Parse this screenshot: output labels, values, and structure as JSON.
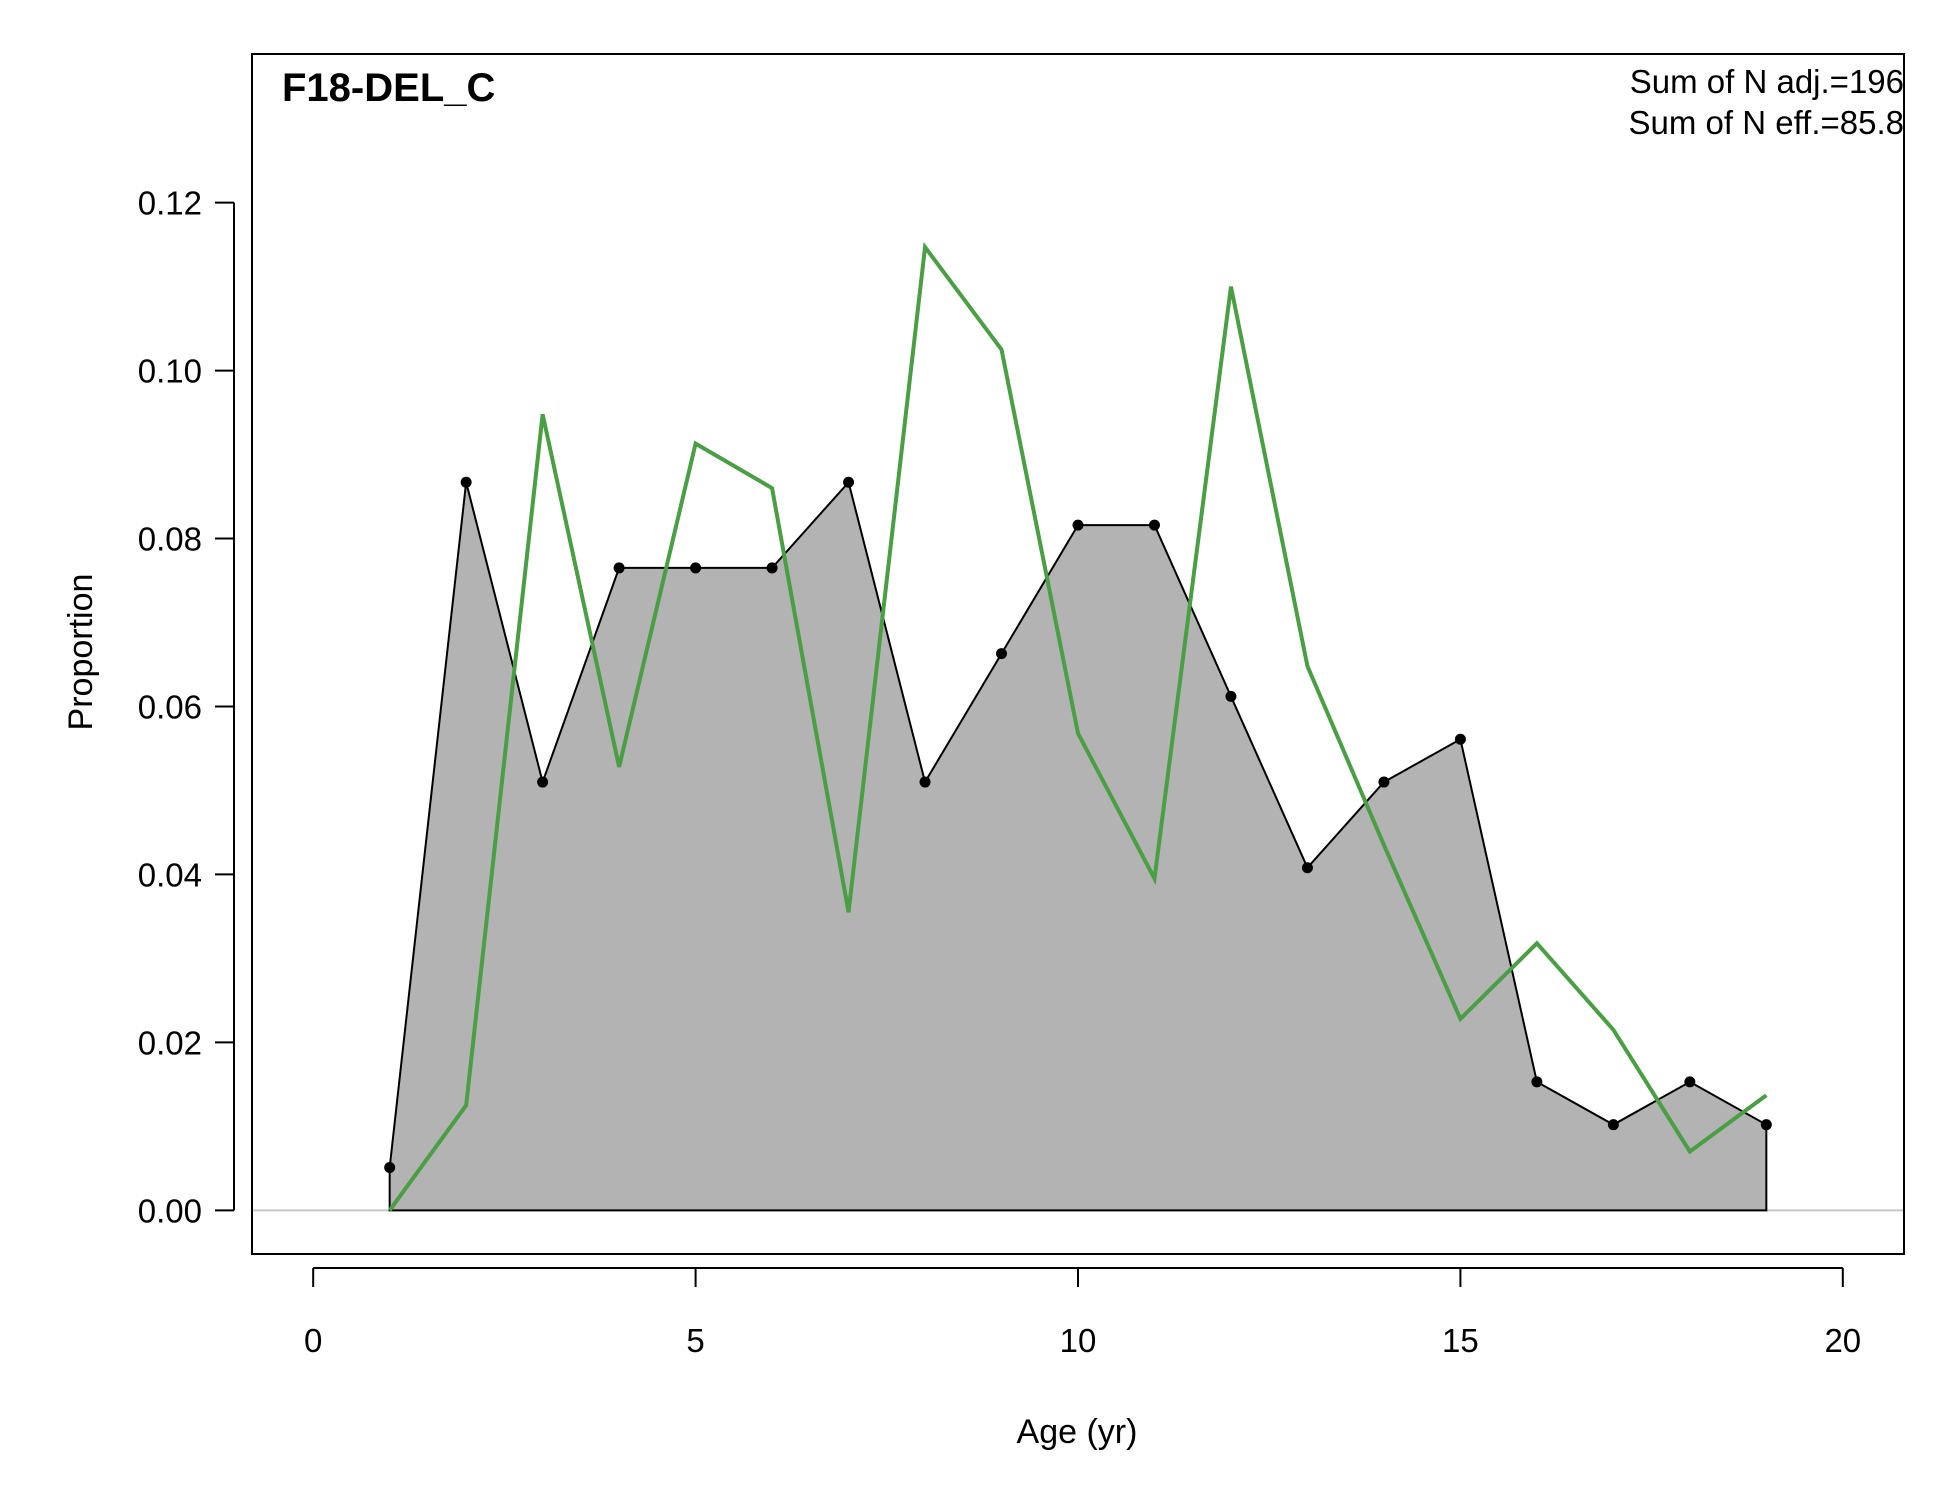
{
  "chart_data": {
    "type": "area",
    "title": "F18-DEL_C",
    "xlabel": "Age (yr)",
    "ylabel": "Proportion",
    "xlim": [
      -0.8,
      20.8
    ],
    "ylim": [
      -0.0052,
      0.1377
    ],
    "xticks": [
      0,
      5,
      10,
      15,
      20
    ],
    "yticks": [
      0.0,
      0.02,
      0.04,
      0.06,
      0.08,
      0.1,
      0.12
    ],
    "ytick_labels": [
      "0.00",
      "0.02",
      "0.04",
      "0.06",
      "0.08",
      "0.10",
      "0.12"
    ],
    "annotations": [
      "Sum of N adj.=196",
      "Sum of N eff.=85.8"
    ],
    "grid": false,
    "series": [
      {
        "role": "observed",
        "style": "filled-area-with-points",
        "color": "#000000",
        "fill": "#b3b3b3",
        "x": [
          1,
          2,
          3,
          4,
          5,
          6,
          7,
          8,
          9,
          10,
          11,
          12,
          13,
          14,
          15,
          16,
          17,
          18,
          19
        ],
        "y": [
          0.0051,
          0.0867,
          0.051,
          0.0765,
          0.0765,
          0.0765,
          0.0867,
          0.051,
          0.0663,
          0.0816,
          0.0816,
          0.0612,
          0.0408,
          0.051,
          0.0561,
          0.0153,
          0.0102,
          0.0153,
          0.0102
        ]
      },
      {
        "role": "expected",
        "style": "line",
        "color": "#4a9e44",
        "x": [
          1,
          2,
          3,
          4,
          5,
          6,
          7,
          8,
          9,
          10,
          11,
          12,
          13,
          14,
          15,
          16,
          17,
          18,
          19
        ],
        "y": [
          0.0,
          0.0125,
          0.0948,
          0.0528,
          0.0913,
          0.086,
          0.0355,
          0.1147,
          0.1025,
          0.0568,
          0.0395,
          0.11,
          0.0648,
          0.0435,
          0.0228,
          0.0318,
          0.0215,
          0.007,
          0.0137
        ]
      }
    ]
  }
}
